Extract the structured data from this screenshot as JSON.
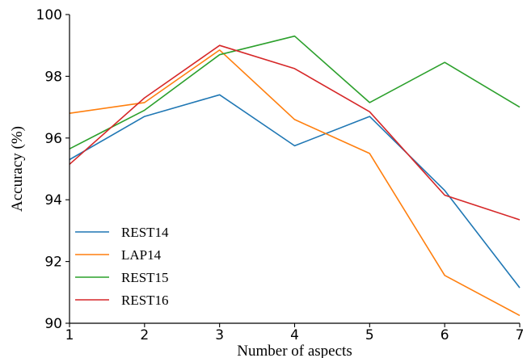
{
  "chart_data": {
    "type": "line",
    "x": [
      1,
      2,
      3,
      4,
      5,
      6,
      7
    ],
    "xlabel": "Number of aspects",
    "ylabel": "Accuracy (%)",
    "xlim": [
      1,
      7
    ],
    "ylim": [
      90,
      100
    ],
    "xticks": [
      "1",
      "2",
      "3",
      "4",
      "5",
      "6",
      "7"
    ],
    "yticks": [
      "90",
      "92",
      "94",
      "96",
      "98",
      "100"
    ],
    "grid": false,
    "legend_position": "lower-left",
    "series": [
      {
        "name": "REST14",
        "color": "#1f77b4",
        "values": [
          95.3,
          96.7,
          97.4,
          95.75,
          96.7,
          94.3,
          91.15
        ]
      },
      {
        "name": "LAP14",
        "color": "#ff7f0e",
        "values": [
          96.8,
          97.15,
          98.85,
          96.6,
          95.5,
          91.55,
          90.25
        ]
      },
      {
        "name": "REST15",
        "color": "#2ca02c",
        "values": [
          95.65,
          96.9,
          98.7,
          99.3,
          97.15,
          98.45,
          97.0
        ]
      },
      {
        "name": "REST16",
        "color": "#d62728",
        "values": [
          95.15,
          97.3,
          99.0,
          98.25,
          96.85,
          94.15,
          93.35
        ]
      }
    ]
  }
}
